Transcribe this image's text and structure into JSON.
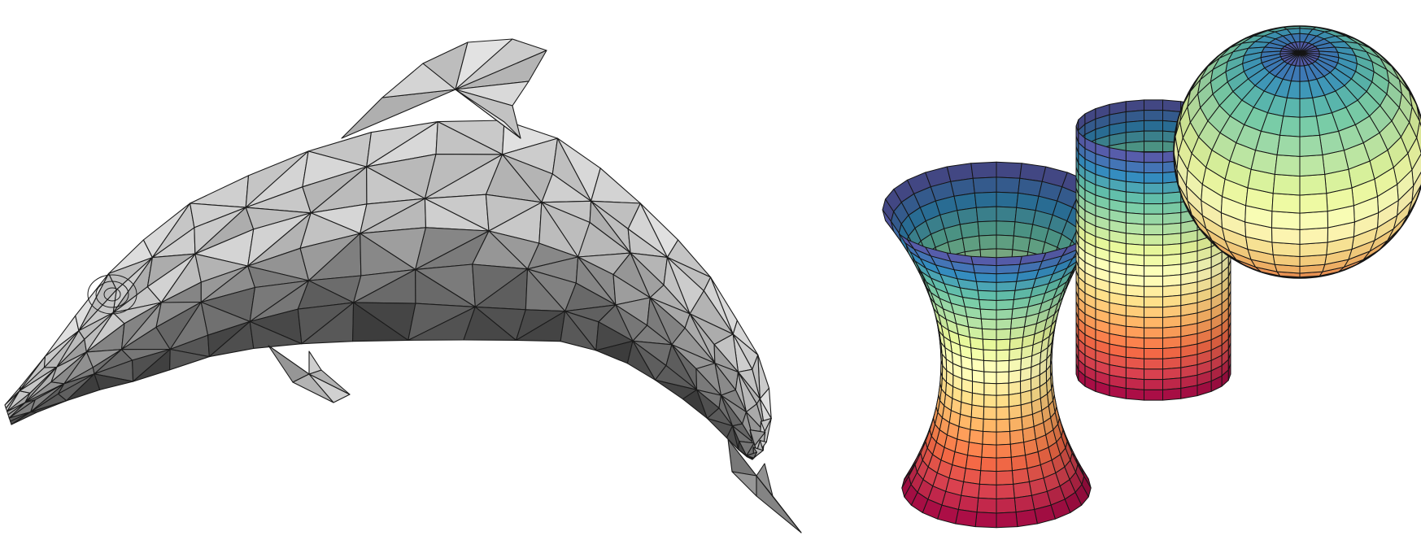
{
  "figure": {
    "left_panel": {
      "subject": "dolphin",
      "style": "triangulated grayscale mesh",
      "colors": {
        "highlight": "#f4f4f4",
        "mid": "#a9a9a9",
        "shadow": "#4a4a4a",
        "edge": "#1b1b1b"
      }
    },
    "right_panel": {
      "subjects": [
        "hyperboloid",
        "cylinder",
        "sphere"
      ],
      "style": "quad mesh surfaces with Spectral colormap by height",
      "colormap": [
        "#9e0142",
        "#d53e4f",
        "#f46d43",
        "#fdae61",
        "#fee08b",
        "#ffffbf",
        "#e6f598",
        "#abdda4",
        "#66c2a5",
        "#3288bd",
        "#5e4fa2"
      ],
      "hyperboloid": {
        "rings": 24,
        "sectors": 28
      },
      "cylinder": {
        "rings": 24,
        "sectors": 26
      },
      "sphere": {
        "rings": 20,
        "sectors": 28
      }
    }
  }
}
